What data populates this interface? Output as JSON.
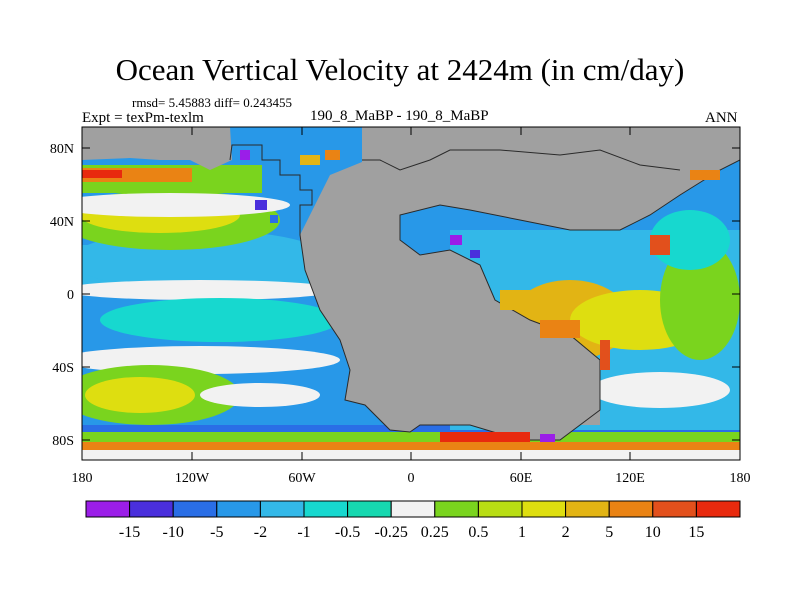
{
  "title": "Ocean Vertical Velocity at 2424m (in cm/day)",
  "stats": "rmsd= 5.45883 diff= 0.243455",
  "expt": "Expt = texPm-texlm",
  "subtitle": "190_8_MaBP - 190_8_MaBP",
  "season": "ANN",
  "lat_labels": [
    "80N",
    "40N",
    "0",
    "40S",
    "80S"
  ],
  "lon_labels": [
    "180",
    "120W",
    "60W",
    "0",
    "60E",
    "120E",
    "180"
  ],
  "colorbar": {
    "labels": [
      "-15",
      "-10",
      "-5",
      "-2",
      "-1",
      "-0.5",
      "-0.25",
      "0.25",
      "0.5",
      "1",
      "2",
      "5",
      "10",
      "15"
    ],
    "colors": [
      "#9b1ee8",
      "#4a2fdc",
      "#2a6ee6",
      "#2898e8",
      "#33b8e8",
      "#17d8cf",
      "#16d8b0",
      "#f2f2f2",
      "#7ad41e",
      "#b8dd14",
      "#dede10",
      "#e2b414",
      "#ea8314",
      "#e2501c",
      "#e82a0e"
    ]
  },
  "map_colors": {
    "land": "#a0a0a0",
    "coast": "#2a2a2a"
  }
}
